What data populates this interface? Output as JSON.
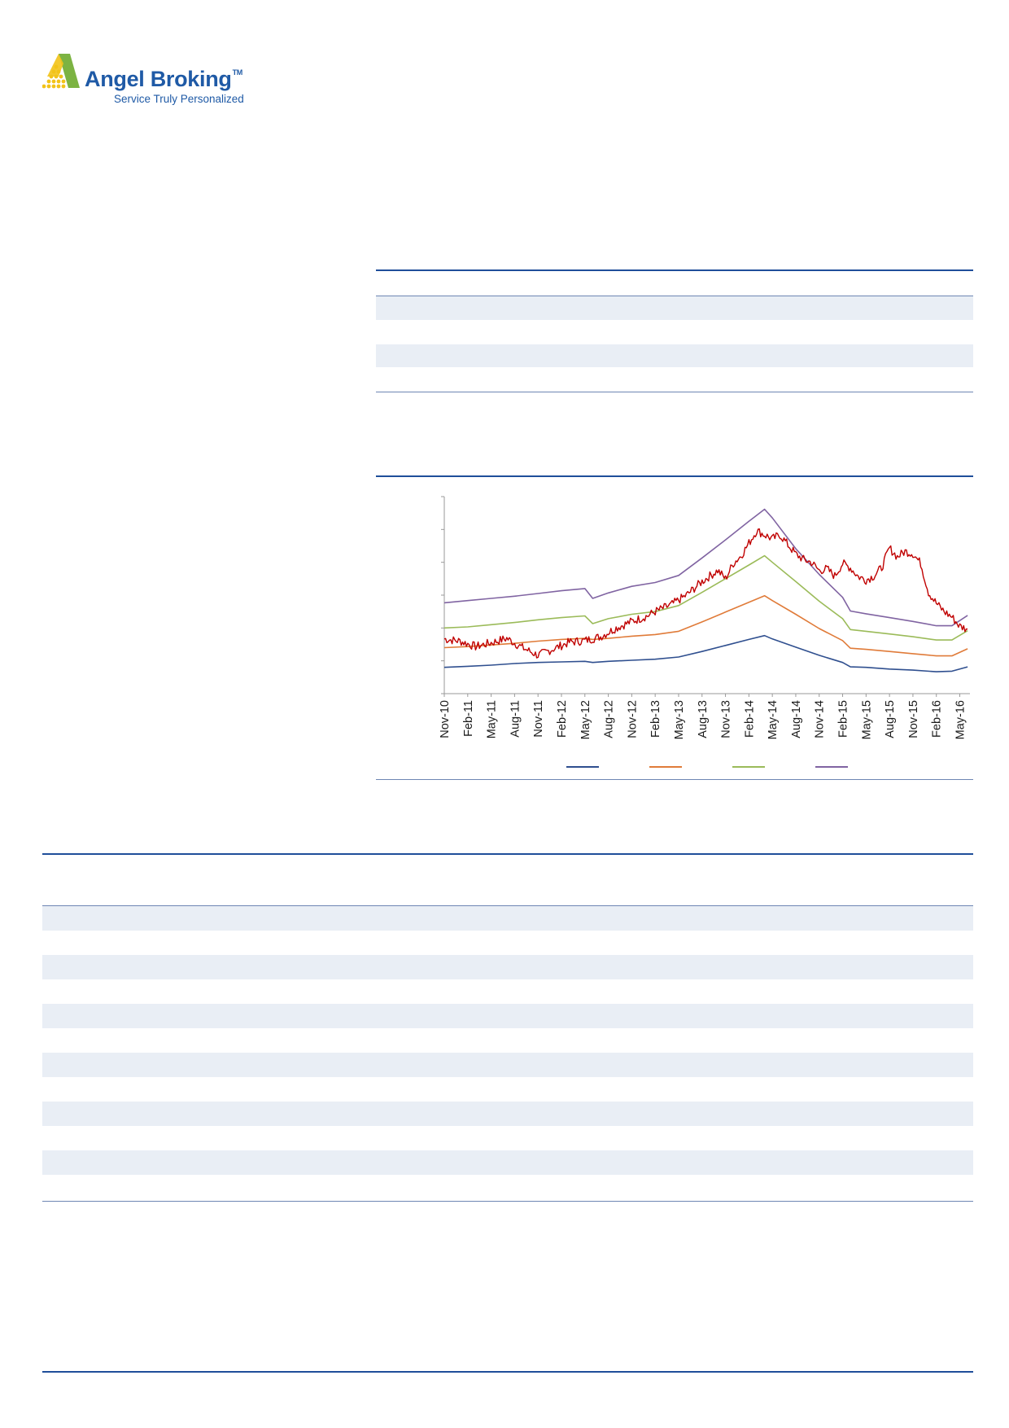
{
  "brand": {
    "name": "Angel Broking",
    "trademark": "TM",
    "tagline": "Service Truly Personalized",
    "colors": {
      "blue": "#1f5aa6",
      "green": "#7cb342",
      "yellow": "#f2c318"
    }
  },
  "chart_data": {
    "type": "line",
    "x_ticks": [
      "Nov-10",
      "Feb-11",
      "May-11",
      "Aug-11",
      "Nov-11",
      "Feb-12",
      "May-12",
      "Aug-12",
      "Nov-12",
      "Feb-13",
      "May-13",
      "Aug-13",
      "Nov-13",
      "Feb-14",
      "May-14",
      "Aug-14",
      "Nov-14",
      "Feb-15",
      "May-15",
      "Aug-15",
      "Nov-15",
      "Feb-16",
      "May-16"
    ],
    "y_tick_count": 7,
    "x_range": [
      "Nov-10",
      "Jun-16"
    ],
    "grid": false,
    "legend_position": "bottom",
    "series": [
      {
        "color": "#2f4f8f",
        "points": [
          [
            "Nov-10",
            48
          ],
          [
            "Feb-11",
            50
          ],
          [
            "May-11",
            52
          ],
          [
            "Aug-11",
            55
          ],
          [
            "Nov-11",
            57
          ],
          [
            "Feb-12",
            58
          ],
          [
            "May-12",
            59
          ],
          [
            "Jun-12",
            57
          ],
          [
            "Aug-12",
            59
          ],
          [
            "Nov-12",
            61
          ],
          [
            "Feb-13",
            63
          ],
          [
            "May-13",
            67
          ],
          [
            "Aug-13",
            77
          ],
          [
            "Nov-13",
            88
          ],
          [
            "Feb-14",
            99
          ],
          [
            "Apr-14",
            106
          ],
          [
            "May-14",
            100
          ],
          [
            "Aug-14",
            85
          ],
          [
            "Nov-14",
            70
          ],
          [
            "Feb-15",
            57
          ],
          [
            "Mar-15",
            49
          ],
          [
            "May-15",
            48
          ],
          [
            "Aug-15",
            45
          ],
          [
            "Nov-15",
            43
          ],
          [
            "Feb-16",
            40
          ],
          [
            "Apr-16",
            41
          ],
          [
            "Jun-16",
            49
          ]
        ]
      },
      {
        "color": "#e07b39",
        "points": [
          [
            "Nov-10",
            84
          ],
          [
            "Feb-11",
            86
          ],
          [
            "May-11",
            89
          ],
          [
            "Aug-11",
            92
          ],
          [
            "Nov-11",
            96
          ],
          [
            "Feb-12",
            99
          ],
          [
            "May-12",
            101
          ],
          [
            "Jun-12",
            99
          ],
          [
            "Aug-12",
            101
          ],
          [
            "Nov-12",
            105
          ],
          [
            "Feb-13",
            108
          ],
          [
            "May-13",
            114
          ],
          [
            "Aug-13",
            131
          ],
          [
            "Nov-13",
            149
          ],
          [
            "Feb-14",
            167
          ],
          [
            "Apr-14",
            179
          ],
          [
            "May-14",
            170
          ],
          [
            "Aug-14",
            145
          ],
          [
            "Nov-14",
            119
          ],
          [
            "Feb-15",
            97
          ],
          [
            "Mar-15",
            83
          ],
          [
            "May-15",
            81
          ],
          [
            "Aug-15",
            77
          ],
          [
            "Nov-15",
            73
          ],
          [
            "Feb-16",
            69
          ],
          [
            "Apr-16",
            69
          ],
          [
            "Jun-16",
            82
          ]
        ]
      },
      {
        "color": "#9bbb59",
        "points": [
          [
            "Nov-10",
            120
          ],
          [
            "Feb-11",
            122
          ],
          [
            "May-11",
            126
          ],
          [
            "Aug-11",
            130
          ],
          [
            "Nov-11",
            135
          ],
          [
            "Feb-12",
            139
          ],
          [
            "May-12",
            142
          ],
          [
            "Jun-12",
            128
          ],
          [
            "Aug-12",
            137
          ],
          [
            "Nov-12",
            145
          ],
          [
            "Feb-13",
            150
          ],
          [
            "May-13",
            161
          ],
          [
            "Aug-13",
            185
          ],
          [
            "Nov-13",
            210
          ],
          [
            "Feb-14",
            235
          ],
          [
            "Apr-14",
            252
          ],
          [
            "May-14",
            240
          ],
          [
            "Aug-14",
            205
          ],
          [
            "Nov-14",
            169
          ],
          [
            "Feb-15",
            137
          ],
          [
            "Mar-15",
            117
          ],
          [
            "May-15",
            114
          ],
          [
            "Aug-15",
            109
          ],
          [
            "Nov-15",
            104
          ],
          [
            "Feb-16",
            98
          ],
          [
            "Apr-16",
            98
          ],
          [
            "Jun-16",
            115
          ]
        ]
      },
      {
        "color": "#8064a2",
        "points": [
          [
            "Nov-10",
            166
          ],
          [
            "Feb-11",
            170
          ],
          [
            "May-11",
            174
          ],
          [
            "Aug-11",
            178
          ],
          [
            "Nov-11",
            183
          ],
          [
            "Feb-12",
            188
          ],
          [
            "May-12",
            192
          ],
          [
            "Jun-12",
            174
          ],
          [
            "Aug-12",
            184
          ],
          [
            "Nov-12",
            196
          ],
          [
            "Feb-13",
            203
          ],
          [
            "May-13",
            216
          ],
          [
            "Aug-13",
            248
          ],
          [
            "Nov-13",
            281
          ],
          [
            "Feb-14",
            315
          ],
          [
            "Apr-14",
            337
          ],
          [
            "May-14",
            321
          ],
          [
            "Aug-14",
            265
          ],
          [
            "Nov-14",
            218
          ],
          [
            "Feb-15",
            176
          ],
          [
            "Mar-15",
            151
          ],
          [
            "May-15",
            146
          ],
          [
            "Aug-15",
            139
          ],
          [
            "Nov-15",
            132
          ],
          [
            "Feb-16",
            124
          ],
          [
            "Apr-16",
            124
          ],
          [
            "Jun-16",
            143
          ]
        ]
      },
      {
        "color": "#c00000",
        "points": [
          [
            "Nov-10",
            100
          ],
          [
            "Jan-11",
            96
          ],
          [
            "Mar-11",
            86
          ],
          [
            "May-11",
            93
          ],
          [
            "Jul-11",
            101
          ],
          [
            "Sep-11",
            84
          ],
          [
            "Nov-11",
            70
          ],
          [
            "Jan-12",
            82
          ],
          [
            "Mar-12",
            94
          ],
          [
            "May-12",
            97
          ],
          [
            "Jul-12",
            104
          ],
          [
            "Sep-12",
            120
          ],
          [
            "Nov-12",
            132
          ],
          [
            "Jan-13",
            142
          ],
          [
            "Feb-13",
            150
          ],
          [
            "Apr-13",
            162
          ],
          [
            "Jun-13",
            180
          ],
          [
            "Aug-13",
            205
          ],
          [
            "Oct-13",
            225
          ],
          [
            "Nov-13",
            210
          ],
          [
            "Dec-13",
            238
          ],
          [
            "Jan-14",
            252
          ],
          [
            "Feb-14",
            275
          ],
          [
            "Mar-14",
            298
          ],
          [
            "Apr-14",
            290
          ],
          [
            "May-14",
            283
          ],
          [
            "Jun-14",
            290
          ],
          [
            "Jul-14",
            272
          ],
          [
            "Aug-14",
            255
          ],
          [
            "Sep-14",
            245
          ],
          [
            "Oct-14",
            240
          ],
          [
            "Nov-14",
            225
          ],
          [
            "Dec-14",
            228
          ],
          [
            "Jan-15",
            215
          ],
          [
            "Feb-15",
            238
          ],
          [
            "Mar-15",
            230
          ],
          [
            "Apr-15",
            214
          ],
          [
            "May-15",
            208
          ],
          [
            "Jun-15",
            215
          ],
          [
            "Jul-15",
            230
          ],
          [
            "Aug-15",
            266
          ],
          [
            "Sep-15",
            250
          ],
          [
            "Oct-15",
            260
          ],
          [
            "Nov-15",
            256
          ],
          [
            "Dec-15",
            238
          ],
          [
            "Jan-16",
            185
          ],
          [
            "Feb-16",
            165
          ],
          [
            "Mar-16",
            150
          ],
          [
            "Apr-16",
            140
          ],
          [
            "May-16",
            123
          ],
          [
            "Jun-16",
            118
          ]
        ]
      }
    ]
  }
}
